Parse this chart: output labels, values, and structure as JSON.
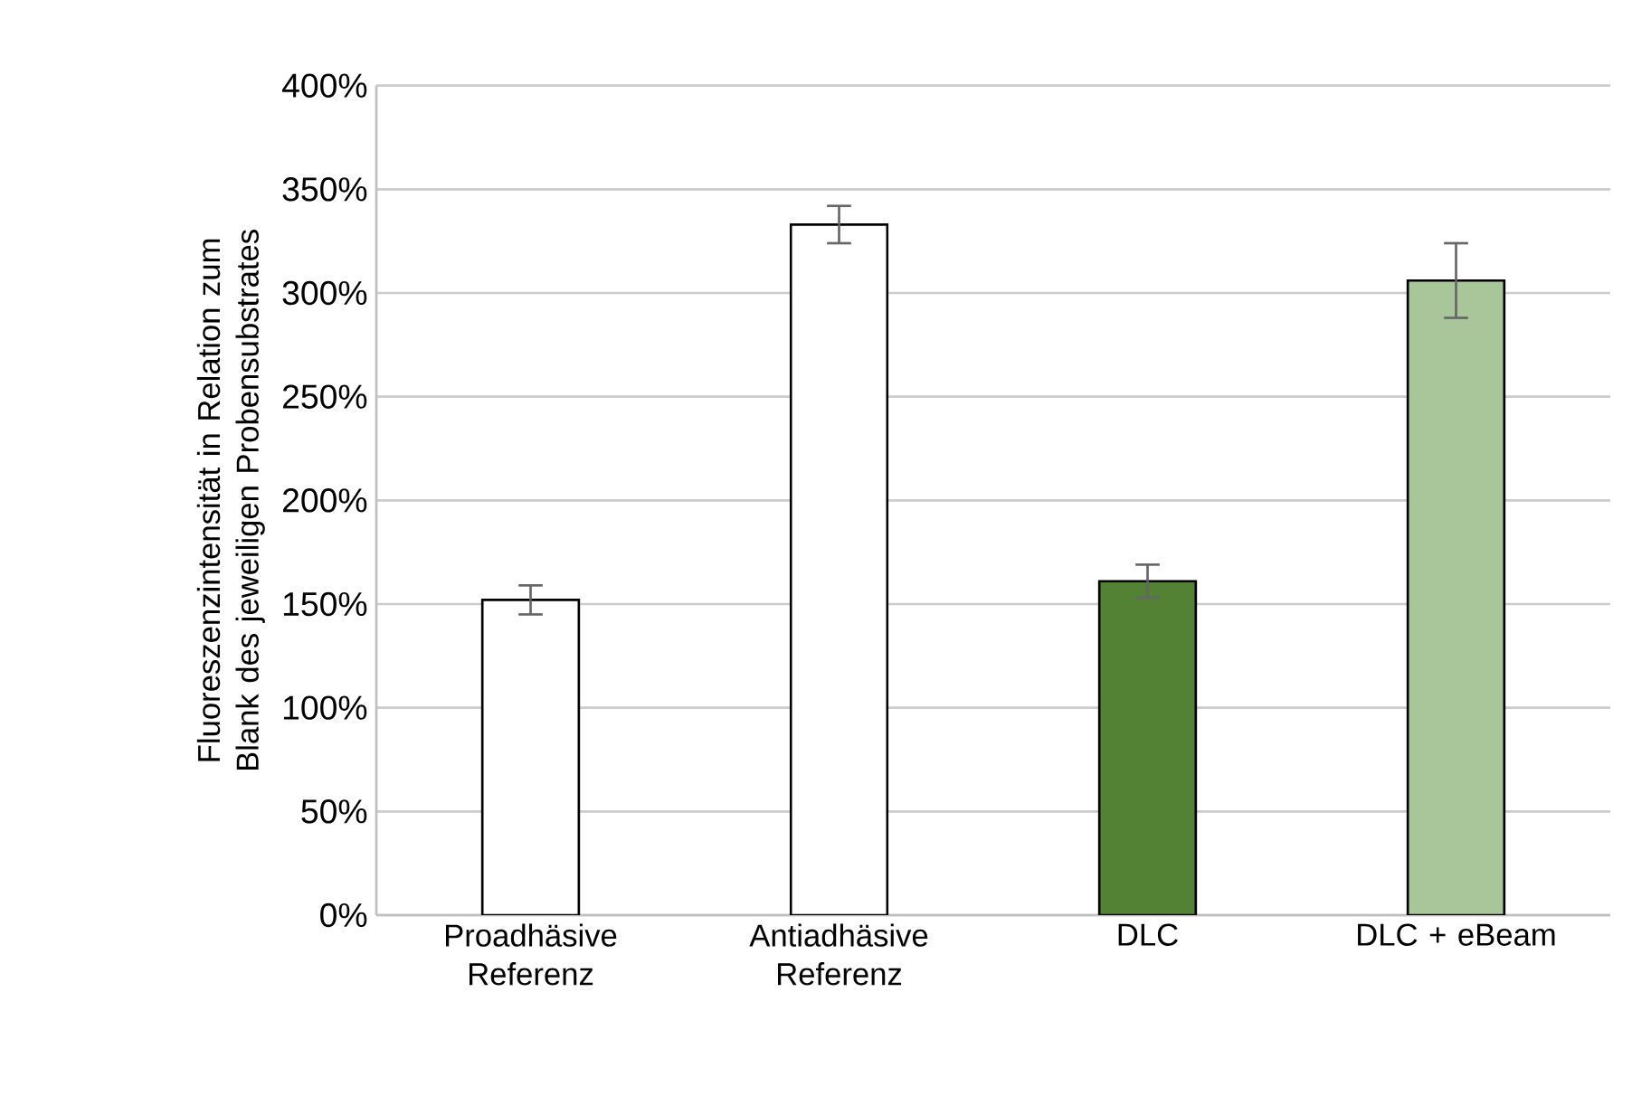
{
  "chart_data": {
    "type": "bar",
    "ylabel": "Fluoreszenzintensität in Relation zum Blank des jeweiligen Probensubstrates",
    "categories": [
      "Proadhäsive Referenz",
      "Antiadhäsive Referenz",
      "DLC",
      "DLC + eBeam"
    ],
    "values": [
      152,
      333,
      161,
      306
    ],
    "errors": [
      7,
      9,
      8,
      18
    ],
    "colors": [
      "#ffffff",
      "#ffffff",
      "#548235",
      "#a9c59a"
    ],
    "ylim": [
      0,
      400
    ],
    "yticks": [
      {
        "value": 0,
        "label": "0%"
      },
      {
        "value": 50,
        "label": "50%"
      },
      {
        "value": 100,
        "label": "100%"
      },
      {
        "value": 150,
        "label": "150%"
      },
      {
        "value": 200,
        "label": "200%"
      },
      {
        "value": 250,
        "label": "250%"
      },
      {
        "value": 300,
        "label": "300%"
      },
      {
        "value": 350,
        "label": "350%"
      },
      {
        "value": 400,
        "label": "400%"
      }
    ],
    "grid": "y"
  }
}
